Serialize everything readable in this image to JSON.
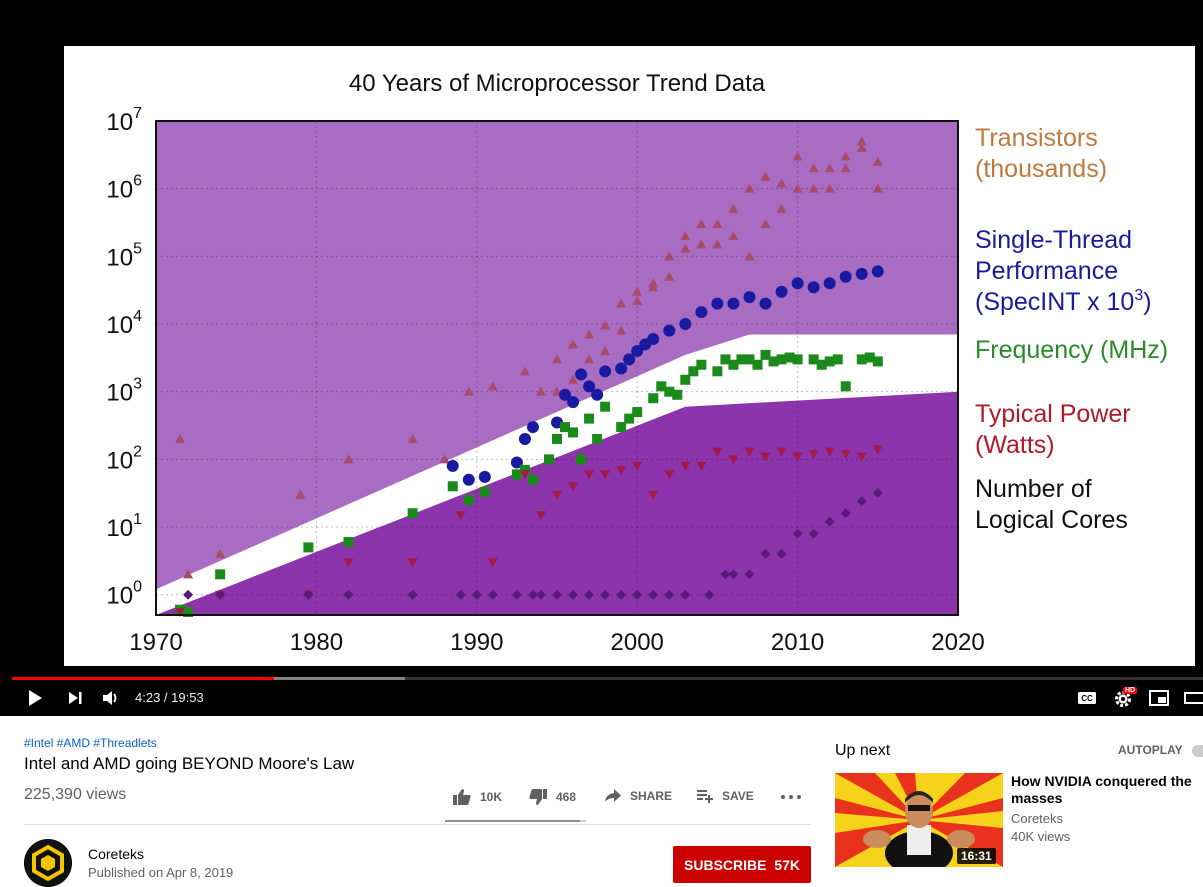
{
  "slide": {
    "title": "40 Years of Microprocessor Trend Data",
    "y_tick_labels": [
      {
        "base": "10",
        "exp": "7"
      },
      {
        "base": "10",
        "exp": "6"
      },
      {
        "base": "10",
        "exp": "5"
      },
      {
        "base": "10",
        "exp": "4"
      },
      {
        "base": "10",
        "exp": "3"
      },
      {
        "base": "10",
        "exp": "2"
      },
      {
        "base": "10",
        "exp": "1"
      },
      {
        "base": "10",
        "exp": "0"
      }
    ],
    "x_tick_labels": [
      "1970",
      "1980",
      "1990",
      "2000",
      "2010",
      "2020"
    ],
    "legend": [
      {
        "lines": [
          "Transistors",
          "(thousands)"
        ],
        "color": "#c0783c"
      },
      {
        "lines": [
          "Single-Thread",
          "Performance",
          "(SpecINT x 10"
        ],
        "sup": "3",
        "close": ")",
        "color": "#1a1aa0"
      },
      {
        "lines": [
          "Frequency (MHz)"
        ],
        "color": "#2a8a2a"
      },
      {
        "lines": [
          "Typical Power",
          "(Watts)"
        ],
        "color": "#b01a2a"
      },
      {
        "lines": [
          "Number of",
          "Logical Cores"
        ],
        "color": "#111111"
      }
    ]
  },
  "chart_data": {
    "type": "scatter",
    "title": "40 Years of Microprocessor Trend Data",
    "x_range": [
      1970,
      2020
    ],
    "y_scale": "log10",
    "y_range_exponent": [
      -0.3,
      7
    ],
    "grid": true,
    "legend_position": "right",
    "background_color": "#a86cc2",
    "lower_region_color": "#8c34ac",
    "series": [
      {
        "name": "Transistors (thousands)",
        "marker": "triangle-up",
        "color": "#a84a6a",
        "x": [
          1971.5,
          1972,
          1974,
          1979,
          1982,
          1986,
          1988,
          1989.5,
          1991,
          1993,
          1993,
          1994,
          1995,
          1995,
          1996,
          1996,
          1997,
          1997,
          1998,
          1998,
          1999,
          1999,
          2000,
          2000,
          2001,
          2001,
          2002,
          2002,
          2003,
          2003,
          2004,
          2004,
          2005,
          2005,
          2006,
          2006,
          2007,
          2007,
          2008,
          2008,
          2009,
          2009,
          2010,
          2010,
          2011,
          2011,
          2012,
          2012,
          2013,
          2013,
          2014,
          2014,
          2015,
          2015
        ],
        "y": [
          200,
          2,
          4,
          30,
          100,
          200,
          100,
          1000,
          1200,
          200,
          2000,
          1000,
          1000,
          3000,
          5000,
          1500,
          7000,
          3000,
          9500,
          4000,
          8000,
          20000,
          30000,
          22000,
          40000,
          35000,
          50000,
          100000,
          200000,
          130000,
          150000,
          300000,
          300000,
          150000,
          200000,
          500000,
          100000,
          1000000,
          1500000,
          300000,
          1200000,
          500000,
          1000000,
          3000000,
          1000000,
          2000000,
          2000000,
          1000000,
          2000000,
          3000000,
          4000000,
          5000000,
          2500000,
          1000000
        ]
      },
      {
        "name": "Single-Thread Performance (SpecINT x 10^3)",
        "marker": "circle",
        "color": "#1a1aa0",
        "x": [
          1988.5,
          1989.5,
          1990.5,
          1992.5,
          1993,
          1993.5,
          1995,
          1995.5,
          1996,
          1996.5,
          1997,
          1997.5,
          1998,
          1999,
          1999.5,
          2000,
          2000.5,
          2001,
          2002,
          2003,
          2004,
          2005,
          2006,
          2007,
          2008,
          2009,
          2010,
          2011,
          2012,
          2013,
          2014,
          2015
        ],
        "y": [
          80,
          50,
          55,
          90,
          200,
          300,
          350,
          900,
          700,
          1800,
          1200,
          900,
          2000,
          2200,
          3000,
          4000,
          5000,
          6000,
          8000,
          10000,
          15000,
          20000,
          20000,
          25000,
          20000,
          30000,
          40000,
          35000,
          40000,
          50000,
          55000,
          60000
        ]
      },
      {
        "name": "Frequency (MHz)",
        "marker": "square",
        "color": "#1a8a1a",
        "x": [
          1971.5,
          1972,
          1974,
          1979.5,
          1982,
          1986,
          1988.5,
          1989.5,
          1990.5,
          1992.5,
          1993,
          1993.5,
          1994.5,
          1995,
          1995.5,
          1996,
          1996.5,
          1997,
          1997.5,
          1998,
          1999,
          1999.5,
          2000,
          2001,
          2001.5,
          2002,
          2002.5,
          2003,
          2003.5,
          2004,
          2005,
          2005.5,
          2006,
          2006.5,
          2007,
          2007.5,
          2008,
          2008.5,
          2009,
          2009.5,
          2010,
          2011,
          2011.5,
          2012,
          2012.5,
          2013,
          2014,
          2014.5,
          2015
        ],
        "y": [
          0.6,
          0.5,
          2,
          5,
          6,
          16,
          40,
          25,
          33,
          60,
          70,
          50,
          100,
          200,
          300,
          250,
          100,
          400,
          200,
          600,
          300,
          400,
          500,
          800,
          1200,
          1000,
          900,
          1500,
          2000,
          2500,
          2000,
          3000,
          2500,
          3000,
          3000,
          2500,
          3500,
          2800,
          3000,
          3200,
          3000,
          3000,
          2500,
          2800,
          3000,
          1200,
          3000,
          3200,
          2800
        ]
      },
      {
        "name": "Typical Power (Watts)",
        "marker": "triangle-down",
        "color": "#a01a4a",
        "x": [
          1971.5,
          1974,
          1979.5,
          1982,
          1986,
          1989,
          1991,
          1993,
          1994,
          1995,
          1996,
          1997,
          1998,
          1999,
          2000,
          2001,
          2002,
          2003,
          2004,
          2005,
          2006,
          2007,
          2008,
          2009,
          2010,
          2011,
          2012,
          2013,
          2014,
          2015
        ],
        "y": [
          0.5,
          1,
          1,
          3,
          3,
          15,
          3,
          60,
          15,
          30,
          40,
          60,
          60,
          70,
          80,
          30,
          60,
          80,
          80,
          130,
          100,
          130,
          110,
          130,
          110,
          120,
          130,
          120,
          110,
          140
        ]
      },
      {
        "name": "Number of Logical Cores",
        "marker": "diamond",
        "color": "#5a1a7a",
        "x": [
          1972,
          1974,
          1979.5,
          1982,
          1986,
          1989,
          1990,
          1991,
          1992.5,
          1993.5,
          1994,
          1995,
          1996,
          1997,
          1998,
          1999,
          2000,
          2001,
          2002,
          2003,
          2004.5,
          2005.5,
          2006,
          2007,
          2008,
          2009,
          2010,
          2011,
          2012,
          2013,
          2014,
          2015
        ],
        "y": [
          1,
          1,
          1,
          1,
          1,
          1,
          1,
          1,
          1,
          1,
          1,
          1,
          1,
          1,
          1,
          1,
          1,
          1,
          1,
          1,
          1,
          2,
          2,
          2,
          4,
          4,
          8,
          8,
          12,
          16,
          24,
          32
        ]
      }
    ]
  },
  "player": {
    "time": "4:23 / 19:53",
    "progress": 0.22,
    "buffered": 0.33,
    "hd_badge": "HD"
  },
  "video": {
    "tags": "#Intel #AMD #Threadlets",
    "title": "Intel and AMD going BEYOND Moore's Law",
    "views": "225,390 views",
    "likes": "10K",
    "dislikes": "468",
    "share_label": "SHARE",
    "save_label": "SAVE",
    "like_ratio": 0.955
  },
  "channel": {
    "name": "Coreteks",
    "published": "Published on Apr 8, 2019",
    "subscribe_label": "SUBSCRIBE",
    "subscriber_count": "57K"
  },
  "sidebar": {
    "up_next_label": "Up next",
    "autoplay_label": "AUTOPLAY",
    "recommended": [
      {
        "title": "How NVIDIA conquered the masses",
        "channel": "Coreteks",
        "views": "40K views",
        "duration": "16:31"
      }
    ]
  },
  "colors": {
    "accent_red": "#ff0000",
    "subscribe_red": "#cc0000",
    "link_blue": "#065fd4"
  }
}
